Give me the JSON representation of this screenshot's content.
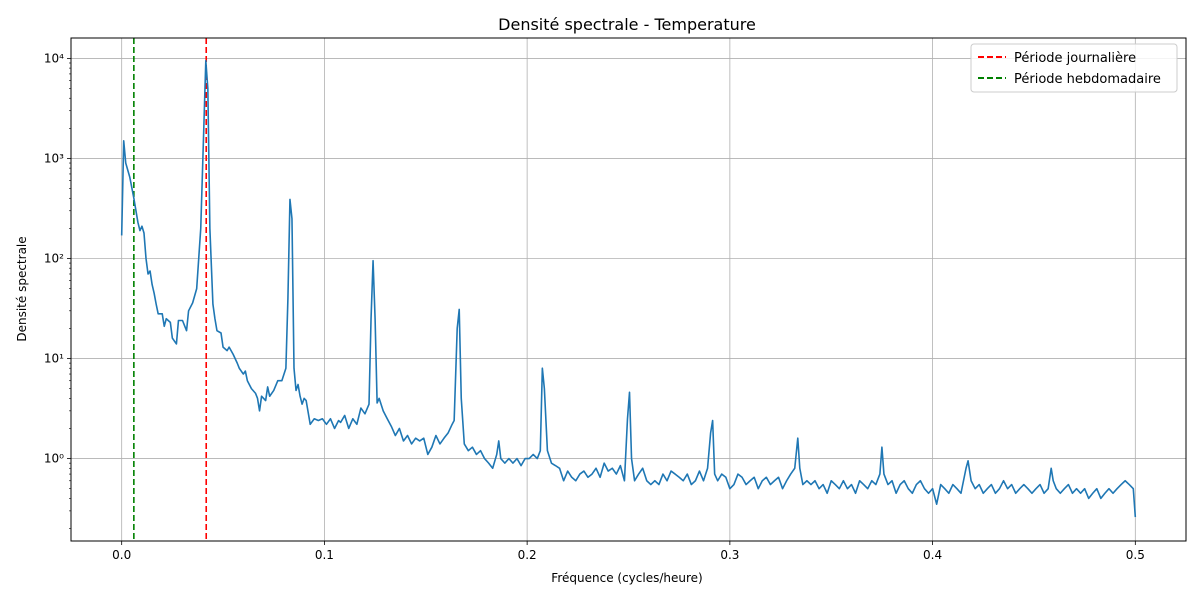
{
  "chart_data": {
    "type": "line",
    "title": "Densité spectrale - Temperature",
    "xlabel": "Fréquence (cycles/heure)",
    "ylabel": "Densité spectrale",
    "xlim": [
      -0.025,
      0.525
    ],
    "ylim": [
      0.15,
      16000
    ],
    "yscale": "log",
    "grid": true,
    "legend_position": "top-right",
    "x_ticks": [
      0.0,
      0.1,
      0.2,
      0.3,
      0.4,
      0.5
    ],
    "x_tick_labels": [
      "0.0",
      "0.1",
      "0.2",
      "0.3",
      "0.4",
      "0.5"
    ],
    "y_ticks": [
      1,
      10,
      100,
      1000,
      10000
    ],
    "y_tick_labels": [
      "10⁰",
      "10¹",
      "10²",
      "10³",
      "10⁴"
    ],
    "series": [
      {
        "color": "#1f77b4",
        "points": [
          [
            0.0,
            170
          ],
          [
            0.001,
            1500
          ],
          [
            0.002,
            900
          ],
          [
            0.004,
            650
          ],
          [
            0.006,
            400
          ],
          [
            0.008,
            230
          ],
          [
            0.009,
            190
          ],
          [
            0.01,
            210
          ],
          [
            0.011,
            180
          ],
          [
            0.012,
            100
          ],
          [
            0.013,
            70
          ],
          [
            0.014,
            75
          ],
          [
            0.015,
            55
          ],
          [
            0.016,
            45
          ],
          [
            0.017,
            35
          ],
          [
            0.018,
            28
          ],
          [
            0.02,
            28
          ],
          [
            0.021,
            21
          ],
          [
            0.022,
            25
          ],
          [
            0.024,
            23
          ],
          [
            0.025,
            16
          ],
          [
            0.027,
            14
          ],
          [
            0.028,
            24
          ],
          [
            0.03,
            24
          ],
          [
            0.032,
            19
          ],
          [
            0.033,
            30
          ],
          [
            0.035,
            36
          ],
          [
            0.037,
            50
          ],
          [
            0.039,
            200
          ],
          [
            0.0405,
            2000
          ],
          [
            0.0415,
            9500
          ],
          [
            0.0425,
            5000
          ],
          [
            0.0435,
            200
          ],
          [
            0.045,
            35
          ],
          [
            0.046,
            25
          ],
          [
            0.047,
            19
          ],
          [
            0.049,
            18
          ],
          [
            0.05,
            13
          ],
          [
            0.052,
            12
          ],
          [
            0.053,
            13
          ],
          [
            0.055,
            11
          ],
          [
            0.057,
            9
          ],
          [
            0.058,
            8
          ],
          [
            0.06,
            7
          ],
          [
            0.061,
            7.5
          ],
          [
            0.062,
            6
          ],
          [
            0.064,
            5
          ],
          [
            0.066,
            4.5
          ],
          [
            0.067,
            4
          ],
          [
            0.068,
            3
          ],
          [
            0.069,
            4.2
          ],
          [
            0.071,
            3.8
          ],
          [
            0.072,
            5.2
          ],
          [
            0.073,
            4.2
          ],
          [
            0.075,
            4.8
          ],
          [
            0.077,
            6
          ],
          [
            0.079,
            6
          ],
          [
            0.081,
            8
          ],
          [
            0.082,
            40
          ],
          [
            0.083,
            390
          ],
          [
            0.084,
            250
          ],
          [
            0.085,
            8
          ],
          [
            0.086,
            4.8
          ],
          [
            0.087,
            5.5
          ],
          [
            0.088,
            4.2
          ],
          [
            0.089,
            3.5
          ],
          [
            0.09,
            4
          ],
          [
            0.091,
            3.8
          ],
          [
            0.093,
            2.2
          ],
          [
            0.095,
            2.5
          ],
          [
            0.097,
            2.4
          ],
          [
            0.099,
            2.5
          ],
          [
            0.101,
            2.2
          ],
          [
            0.103,
            2.5
          ],
          [
            0.105,
            2
          ],
          [
            0.107,
            2.4
          ],
          [
            0.108,
            2.3
          ],
          [
            0.11,
            2.7
          ],
          [
            0.112,
            2
          ],
          [
            0.114,
            2.5
          ],
          [
            0.116,
            2.2
          ],
          [
            0.118,
            3.2
          ],
          [
            0.12,
            2.8
          ],
          [
            0.122,
            3.5
          ],
          [
            0.123,
            25
          ],
          [
            0.124,
            95
          ],
          [
            0.125,
            25
          ],
          [
            0.126,
            3.6
          ],
          [
            0.127,
            4
          ],
          [
            0.129,
            3
          ],
          [
            0.131,
            2.5
          ],
          [
            0.133,
            2.1
          ],
          [
            0.135,
            1.7
          ],
          [
            0.137,
            2
          ],
          [
            0.139,
            1.5
          ],
          [
            0.141,
            1.7
          ],
          [
            0.143,
            1.4
          ],
          [
            0.145,
            1.6
          ],
          [
            0.147,
            1.5
          ],
          [
            0.149,
            1.6
          ],
          [
            0.151,
            1.1
          ],
          [
            0.153,
            1.3
          ],
          [
            0.155,
            1.7
          ],
          [
            0.157,
            1.4
          ],
          [
            0.159,
            1.6
          ],
          [
            0.161,
            1.8
          ],
          [
            0.163,
            2.2
          ],
          [
            0.164,
            2.4
          ],
          [
            0.1655,
            20
          ],
          [
            0.1665,
            31
          ],
          [
            0.1675,
            4
          ],
          [
            0.169,
            1.4
          ],
          [
            0.171,
            1.2
          ],
          [
            0.173,
            1.3
          ],
          [
            0.175,
            1.1
          ],
          [
            0.177,
            1.2
          ],
          [
            0.179,
            1
          ],
          [
            0.181,
            0.9
          ],
          [
            0.183,
            0.8
          ],
          [
            0.185,
            1.1
          ],
          [
            0.186,
            1.5
          ],
          [
            0.187,
            1
          ],
          [
            0.189,
            0.9
          ],
          [
            0.191,
            1
          ],
          [
            0.193,
            0.9
          ],
          [
            0.195,
            1
          ],
          [
            0.197,
            0.85
          ],
          [
            0.199,
            1
          ],
          [
            0.201,
            1
          ],
          [
            0.203,
            1.1
          ],
          [
            0.205,
            1
          ],
          [
            0.2065,
            1.2
          ],
          [
            0.2075,
            8
          ],
          [
            0.2085,
            5
          ],
          [
            0.21,
            1.2
          ],
          [
            0.212,
            0.9
          ],
          [
            0.214,
            0.85
          ],
          [
            0.216,
            0.8
          ],
          [
            0.218,
            0.6
          ],
          [
            0.22,
            0.75
          ],
          [
            0.222,
            0.65
          ],
          [
            0.224,
            0.6
          ],
          [
            0.226,
            0.7
          ],
          [
            0.228,
            0.75
          ],
          [
            0.23,
            0.65
          ],
          [
            0.232,
            0.7
          ],
          [
            0.234,
            0.8
          ],
          [
            0.236,
            0.65
          ],
          [
            0.238,
            0.9
          ],
          [
            0.24,
            0.75
          ],
          [
            0.242,
            0.8
          ],
          [
            0.244,
            0.7
          ],
          [
            0.246,
            0.85
          ],
          [
            0.248,
            0.6
          ],
          [
            0.2495,
            2.5
          ],
          [
            0.2505,
            4.6
          ],
          [
            0.2515,
            1
          ],
          [
            0.253,
            0.6
          ],
          [
            0.255,
            0.7
          ],
          [
            0.257,
            0.8
          ],
          [
            0.259,
            0.6
          ],
          [
            0.261,
            0.55
          ],
          [
            0.263,
            0.6
          ],
          [
            0.265,
            0.55
          ],
          [
            0.267,
            0.7
          ],
          [
            0.269,
            0.6
          ],
          [
            0.271,
            0.75
          ],
          [
            0.273,
            0.7
          ],
          [
            0.275,
            0.65
          ],
          [
            0.277,
            0.6
          ],
          [
            0.279,
            0.7
          ],
          [
            0.281,
            0.55
          ],
          [
            0.283,
            0.6
          ],
          [
            0.285,
            0.75
          ],
          [
            0.287,
            0.6
          ],
          [
            0.289,
            0.8
          ],
          [
            0.2905,
            1.8
          ],
          [
            0.2915,
            2.4
          ],
          [
            0.2925,
            0.7
          ],
          [
            0.294,
            0.6
          ],
          [
            0.296,
            0.7
          ],
          [
            0.298,
            0.65
          ],
          [
            0.3,
            0.5
          ],
          [
            0.302,
            0.55
          ],
          [
            0.304,
            0.7
          ],
          [
            0.306,
            0.65
          ],
          [
            0.308,
            0.55
          ],
          [
            0.31,
            0.6
          ],
          [
            0.312,
            0.65
          ],
          [
            0.314,
            0.5
          ],
          [
            0.316,
            0.6
          ],
          [
            0.318,
            0.65
          ],
          [
            0.32,
            0.55
          ],
          [
            0.322,
            0.6
          ],
          [
            0.324,
            0.65
          ],
          [
            0.326,
            0.5
          ],
          [
            0.328,
            0.6
          ],
          [
            0.33,
            0.7
          ],
          [
            0.332,
            0.8
          ],
          [
            0.3335,
            1.6
          ],
          [
            0.3345,
            0.8
          ],
          [
            0.336,
            0.55
          ],
          [
            0.338,
            0.6
          ],
          [
            0.34,
            0.55
          ],
          [
            0.342,
            0.6
          ],
          [
            0.344,
            0.5
          ],
          [
            0.346,
            0.55
          ],
          [
            0.348,
            0.45
          ],
          [
            0.35,
            0.6
          ],
          [
            0.352,
            0.55
          ],
          [
            0.354,
            0.5
          ],
          [
            0.356,
            0.6
          ],
          [
            0.358,
            0.5
          ],
          [
            0.36,
            0.55
          ],
          [
            0.362,
            0.45
          ],
          [
            0.364,
            0.6
          ],
          [
            0.366,
            0.55
          ],
          [
            0.368,
            0.5
          ],
          [
            0.37,
            0.6
          ],
          [
            0.372,
            0.55
          ],
          [
            0.374,
            0.7
          ],
          [
            0.375,
            1.3
          ],
          [
            0.376,
            0.7
          ],
          [
            0.378,
            0.55
          ],
          [
            0.38,
            0.6
          ],
          [
            0.382,
            0.45
          ],
          [
            0.384,
            0.55
          ],
          [
            0.386,
            0.6
          ],
          [
            0.388,
            0.5
          ],
          [
            0.39,
            0.45
          ],
          [
            0.392,
            0.55
          ],
          [
            0.394,
            0.6
          ],
          [
            0.396,
            0.5
          ],
          [
            0.398,
            0.45
          ],
          [
            0.4,
            0.5
          ],
          [
            0.402,
            0.35
          ],
          [
            0.404,
            0.55
          ],
          [
            0.406,
            0.5
          ],
          [
            0.408,
            0.45
          ],
          [
            0.41,
            0.55
          ],
          [
            0.412,
            0.5
          ],
          [
            0.414,
            0.45
          ],
          [
            0.4165,
            0.8
          ],
          [
            0.4175,
            0.95
          ],
          [
            0.419,
            0.6
          ],
          [
            0.421,
            0.5
          ],
          [
            0.423,
            0.55
          ],
          [
            0.425,
            0.45
          ],
          [
            0.427,
            0.5
          ],
          [
            0.429,
            0.55
          ],
          [
            0.431,
            0.45
          ],
          [
            0.433,
            0.5
          ],
          [
            0.435,
            0.6
          ],
          [
            0.437,
            0.5
          ],
          [
            0.439,
            0.55
          ],
          [
            0.441,
            0.45
          ],
          [
            0.443,
            0.5
          ],
          [
            0.445,
            0.55
          ],
          [
            0.447,
            0.5
          ],
          [
            0.449,
            0.45
          ],
          [
            0.451,
            0.5
          ],
          [
            0.453,
            0.55
          ],
          [
            0.455,
            0.45
          ],
          [
            0.457,
            0.5
          ],
          [
            0.4585,
            0.8
          ],
          [
            0.4595,
            0.6
          ],
          [
            0.461,
            0.5
          ],
          [
            0.463,
            0.45
          ],
          [
            0.465,
            0.5
          ],
          [
            0.467,
            0.55
          ],
          [
            0.469,
            0.45
          ],
          [
            0.471,
            0.5
          ],
          [
            0.473,
            0.45
          ],
          [
            0.475,
            0.5
          ],
          [
            0.477,
            0.4
          ],
          [
            0.479,
            0.45
          ],
          [
            0.481,
            0.5
          ],
          [
            0.483,
            0.4
          ],
          [
            0.485,
            0.45
          ],
          [
            0.487,
            0.5
          ],
          [
            0.489,
            0.45
          ],
          [
            0.491,
            0.5
          ],
          [
            0.493,
            0.55
          ],
          [
            0.495,
            0.6
          ],
          [
            0.497,
            0.55
          ],
          [
            0.499,
            0.5
          ],
          [
            0.5,
            0.26
          ]
        ]
      }
    ],
    "vlines": [
      {
        "name": "Période journalière",
        "x": 0.0417,
        "color": "#d62728",
        "css_color": "red"
      },
      {
        "name": "Période hebdomadaire",
        "x": 0.006,
        "color": "#008000",
        "css_color": "green"
      }
    ]
  }
}
